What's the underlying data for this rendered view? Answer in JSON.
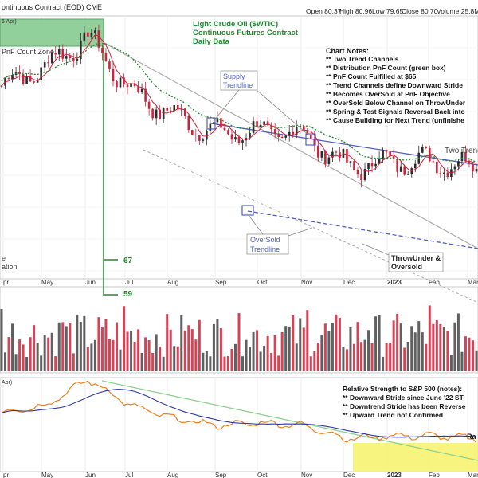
{
  "header": {
    "title": "ontinuous Contract (EOD) CME",
    "open": "Open 80.37",
    "high": "High 80.96",
    "low": "Low 79.65",
    "close": "Close 80.70",
    "volume": "Volume 25.8M"
  },
  "top_left_stub": "6 Apr)",
  "mid_left_stub": "Apr)",
  "chart_heading": [
    "Light Crude Oil ($WTIC)",
    "Continuous Futures Contract",
    "Daily Data"
  ],
  "notes": {
    "title": "Chart Notes:",
    "items": [
      "** Two Trend Channels",
      "** Distribution PnF Count (green box)",
      "** PnF Count Fulfilled at $65",
      "** Trend Channels define Downward Stride",
      "** Becomes OverSold at PnF Objective",
      "** OverSold Below Channel on ThrowUnder",
      "** Spring & Test Signals Reversal Back into",
      "** Cause Building for Next Trend (unfinishe"
    ]
  },
  "annotations": {
    "pnf_zone": "PnF Count Zone",
    "supply_trendline": [
      "Supply",
      "Trendline"
    ],
    "oversold_trendline": [
      "OverSold",
      "Trendline"
    ],
    "two_trend": "Two Trend",
    "throwunder": [
      "ThrowUnder &",
      "Oversold"
    ],
    "left_fragment": [
      "e",
      "ation"
    ],
    "pnf_67": "67",
    "pnf_59": "59",
    "range_fragment": "Ra"
  },
  "rs_notes": {
    "title": "Relative Strength to S&P 500 (notes):",
    "items": [
      "** Downward Stride since June '22 ST",
      "** Downtrend Stride has been Reverse",
      "** Upward Trend not Confirmed"
    ]
  },
  "x_axis_labels": [
    "pr",
    "May",
    "Jun",
    "Jul",
    "Aug",
    "Sep",
    "Oct",
    "Nov",
    "Dec",
    "2023",
    "Feb",
    "Mar"
  ],
  "colors": {
    "up_candle": "#2b2b2b",
    "down_candle": "#d0213a",
    "ma_short": "#d0213a",
    "ma_long": "#1d8a2e",
    "trendline": "#4f5fc0",
    "channel": "#aaaaaa",
    "pnf_box": "#7ec78a",
    "rs_line": "#f07f1c",
    "rs_ma": "#2d39a8",
    "rs_highlight": "#f6f26a",
    "annotation_green": "#1d8a2e"
  },
  "chart_data": {
    "type": "candlestick",
    "title": "Light Crude Oil ($WTIC)",
    "x": [
      "Apr",
      "May",
      "Jun",
      "Jul",
      "Aug",
      "Sep",
      "Oct",
      "Nov",
      "Dec",
      "2023",
      "Feb",
      "Mar"
    ],
    "close_approx": [
      102,
      108,
      118,
      100,
      92,
      86,
      87,
      86,
      75,
      77,
      77,
      75
    ],
    "pnf_count_levels": [
      67,
      59
    ],
    "series": [
      {
        "name": "Price",
        "values": [
          102,
          108,
          118,
          100,
          92,
          86,
          87,
          86,
          75,
          77,
          77,
          75
        ]
      },
      {
        "name": "Relative Strength to S&P 500",
        "values": [
          0.5,
          0.55,
          0.75,
          0.55,
          0.45,
          0.4,
          0.42,
          0.4,
          0.3,
          0.32,
          0.32,
          0.3
        ]
      }
    ],
    "grid": true,
    "legend": "none"
  }
}
